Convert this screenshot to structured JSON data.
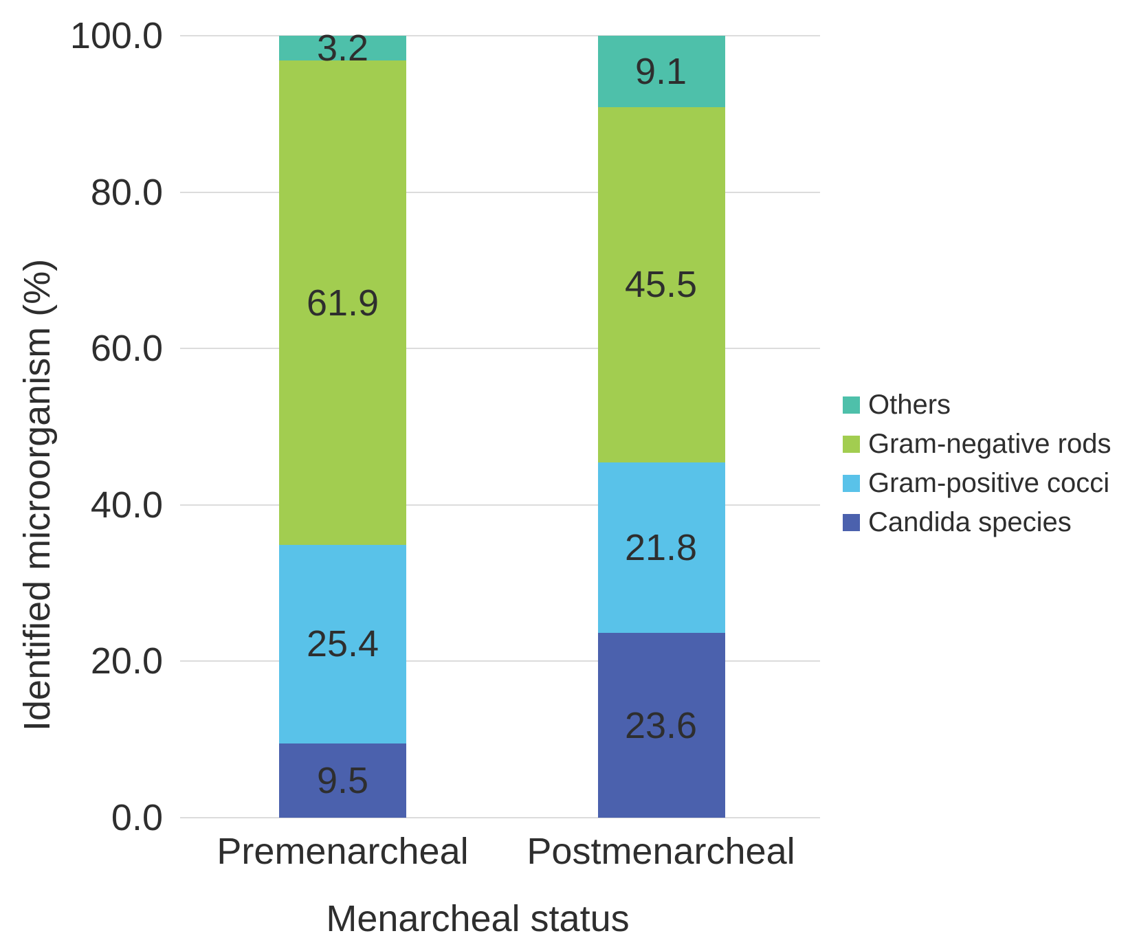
{
  "chart_data": {
    "type": "bar",
    "stacked": true,
    "xlabel": "Menarcheal status",
    "ylabel": "Identified microorganism (%)",
    "categories": [
      "Premenarcheal",
      "Postmenarcheal"
    ],
    "series": [
      {
        "name": "Candida species",
        "color": "#4b61ad",
        "values": [
          9.5,
          23.6
        ]
      },
      {
        "name": "Gram-positive cocci",
        "color": "#59c2e9",
        "values": [
          25.4,
          21.8
        ]
      },
      {
        "name": "Gram-negative rods",
        "color": "#a2cd50",
        "values": [
          61.9,
          45.5
        ]
      },
      {
        "name": "Others",
        "color": "#4ec0aa",
        "values": [
          3.2,
          9.1
        ]
      }
    ],
    "value_label_decimals": 1,
    "ylim": [
      0,
      100
    ],
    "yticks": [
      0,
      20,
      40,
      60,
      80,
      100
    ],
    "ytick_labels": [
      "0.0",
      "20.0",
      "40.0",
      "60.0",
      "80.0",
      "100.0"
    ],
    "grid": true,
    "legend": {
      "position": "right",
      "order": [
        "Others",
        "Gram-negative rods",
        "Gram-positive cocci",
        "Candida species"
      ]
    }
  },
  "colors": {
    "grid": "#dcdcdc",
    "text": "#2e2e2e",
    "background": "#ffffff"
  }
}
